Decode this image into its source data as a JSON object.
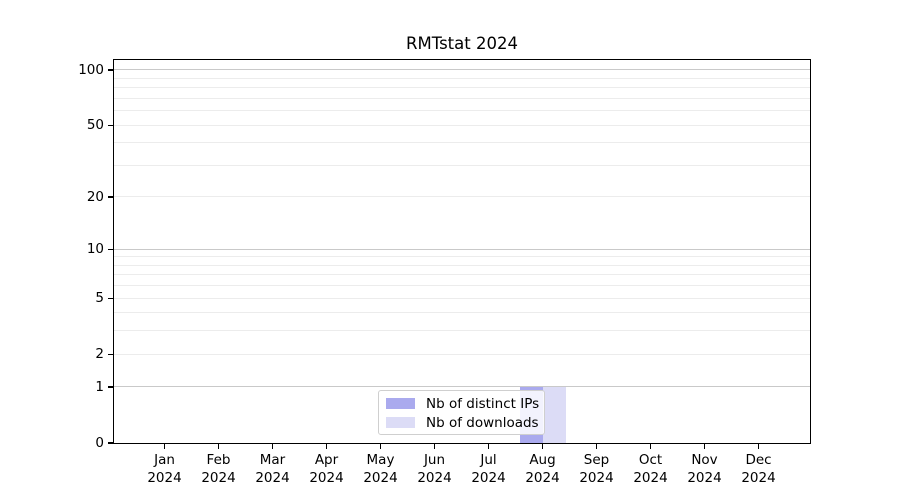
{
  "title": "RMTstat 2024",
  "chart_data": {
    "type": "bar",
    "title": "RMTstat 2024",
    "x": {
      "categories": [
        "Jan",
        "Feb",
        "Mar",
        "Apr",
        "May",
        "Jun",
        "Jul",
        "Aug",
        "Sep",
        "Oct",
        "Nov",
        "Dec"
      ],
      "sublabel": "2024"
    },
    "series": [
      {
        "name": "Nb of distinct IPs",
        "color": "#aaaaee",
        "values": [
          0,
          0,
          0,
          0,
          0,
          0,
          0,
          1,
          0,
          0,
          0,
          0
        ]
      },
      {
        "name": "Nb of downloads",
        "color": "#dcdcf6",
        "values": [
          0,
          0,
          0,
          0,
          0,
          0,
          0,
          1,
          0,
          0,
          0,
          0
        ]
      }
    ],
    "yscale": "log1p",
    "ylim": [
      0,
      113.3
    ],
    "yticks": [
      {
        "value": 100,
        "label": "100"
      },
      {
        "value": 50,
        "label": "50"
      },
      {
        "value": 20,
        "label": "20"
      },
      {
        "value": 10,
        "label": "10"
      },
      {
        "value": 5,
        "label": "5"
      },
      {
        "value": 2,
        "label": "2"
      },
      {
        "value": 1,
        "label": "1"
      },
      {
        "value": 0,
        "label": "0"
      }
    ],
    "grid": {
      "major_values": [
        1,
        10,
        100
      ],
      "minor_values": [
        2,
        3,
        4,
        5,
        6,
        7,
        8,
        9,
        20,
        30,
        40,
        50,
        60,
        70,
        80,
        90
      ],
      "major_color": "#c9c9c9",
      "minor_color": "#ececec"
    },
    "legend": {
      "position": "bottom-center",
      "items": [
        "Nb of distinct IPs",
        "Nb of downloads"
      ]
    }
  },
  "colors": {
    "background": "#ffffff",
    "axis": "#000000",
    "text": "#000000"
  }
}
